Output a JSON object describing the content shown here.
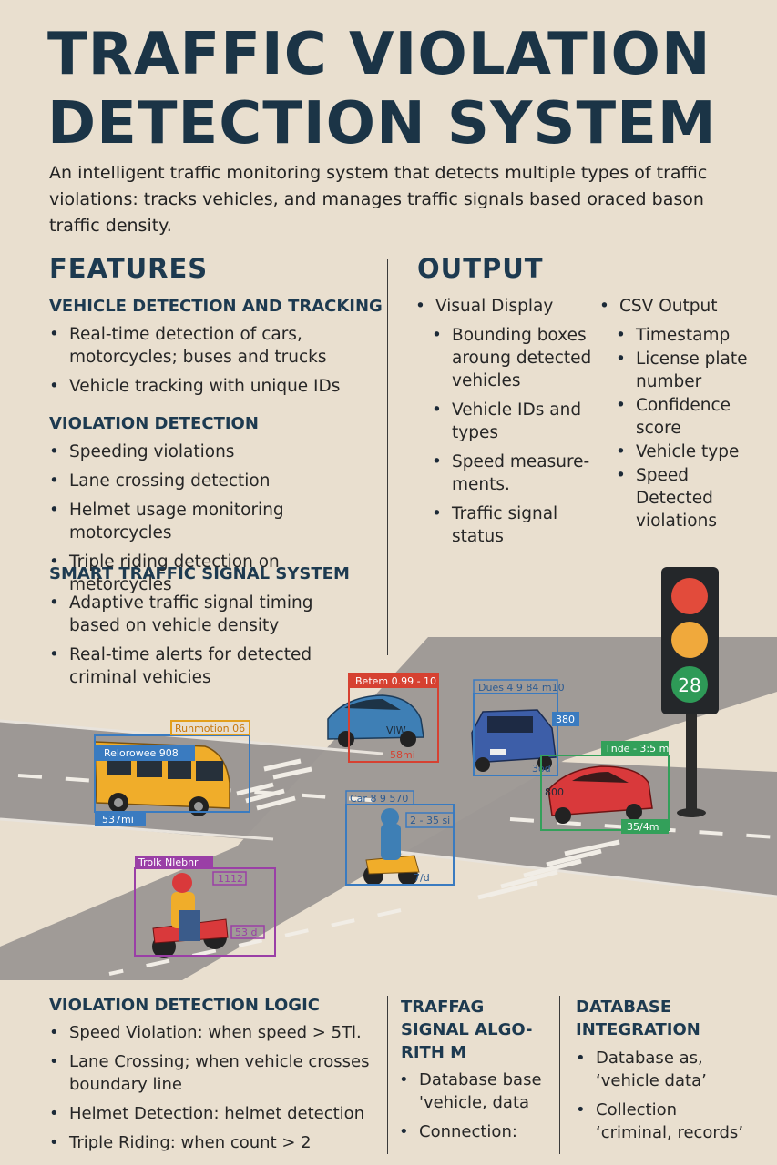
{
  "title": {
    "line1": "TRAFFIC VIOLATION",
    "line2": "DETECTION SYSTEM"
  },
  "intro": "An intelligent traffic monitoring system that detects multiple types of traffic violations: tracks vehicles, and manages traffic signals based oraced bason traffic density.",
  "features": {
    "heading": "FEATURES",
    "sections": [
      {
        "heading": "VEHICLE DETECTION AND TRACKING",
        "items": [
          "Real-time detection of cars, motorcycles; buses and trucks",
          "Vehicle tracking with unique IDs"
        ]
      },
      {
        "heading": "VIOLATION DETECTION",
        "items": [
          "Speeding violations",
          "Lane crossing detection",
          "Helmet usage monitoring motorcycles",
          "Triple riding detection on metorcycles"
        ]
      },
      {
        "heading": "SMART TRAFFIC SIGNAL SYSTEM",
        "items": [
          "Adaptive traffic signal timing based on vehicle density",
          "Real-time alerts for detected criminal vehicies"
        ]
      }
    ]
  },
  "output": {
    "heading": "OUTPUT",
    "visual": {
      "label": "Visual Display",
      "items": [
        "Bounding boxes aroung detected vehicles",
        "Vehicle IDs and types",
        "Speed measure- ments.",
        "Traffic signal status"
      ]
    },
    "csv": {
      "label": "CSV Output",
      "items": [
        "Timestamp",
        "License plate number",
        "Confidence score",
        "Vehicle type",
        "Speed Detected violations"
      ]
    }
  },
  "scene": {
    "signal_count": "28",
    "labels": {
      "bus_top": "Runmotion 06",
      "bus_id": "Relorowee 908",
      "bus_speed": "537mi",
      "blue_top": "Betem 0.99 - 10",
      "blue_plate": "VIW",
      "blue_speed": "58mi",
      "suv_top": "Dues 4 9 84 m10",
      "suv_num": "380",
      "suv_speed": "3od",
      "red_top": "Tnde - 3:5 m",
      "red_plate": "800",
      "red_speed": "35/4m",
      "moto_top": "Car 8 9 570",
      "moto_id": "2 - 35 si",
      "moto_speed": "7/d",
      "rider_top": "Trolk Nlebnr",
      "rider_id": "1112",
      "rider_speed": "53 d"
    }
  },
  "logic": {
    "heading": "VIOLATION DETECTION LOGIC",
    "items": [
      "Speed Violation: when speed > 5Tl.",
      "Lane Crossing; when vehicle crosses boundary line",
      "Helmet Detection: helmet detection",
      "Triple Riding: when count > 2"
    ]
  },
  "algo": {
    "heading": "TRAFFAG SIGNAL ALGO- RITH M",
    "items": [
      "Database base 'vehicle, data",
      "Connection:"
    ]
  },
  "database": {
    "heading": "DATABASE INTEGRATION",
    "items": [
      "Database as, ‘vehicle data’",
      "Collection ‘criminal, records’"
    ]
  },
  "colors": {
    "title": "#1b3446",
    "bus": "#f0ad2a",
    "blue_car": "#3e7fb5",
    "suv": "#3d5ea8",
    "red_car": "#d9393b",
    "road": "#9d9895"
  }
}
